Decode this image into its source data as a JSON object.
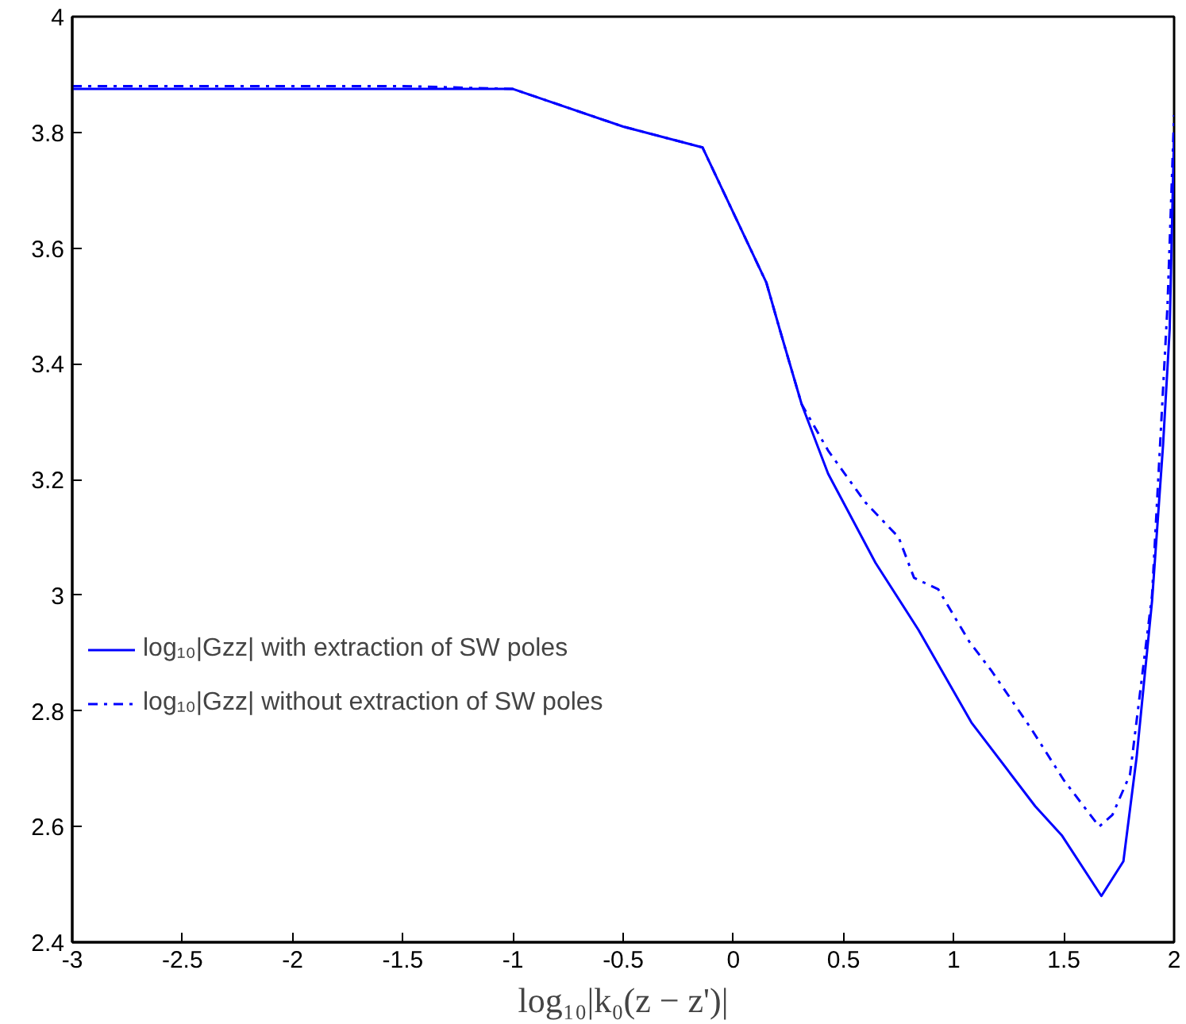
{
  "chart_data": {
    "type": "line",
    "xlabel": "log₁₀|k₀(z − z')|",
    "xlim": [
      -3,
      2
    ],
    "ylim": [
      2.4,
      4
    ],
    "xticks": [
      -3,
      -2.5,
      -2,
      -1.5,
      -1,
      -0.5,
      0,
      0.5,
      1,
      1.5,
      2
    ],
    "yticks": [
      2.4,
      2.6,
      2.8,
      3,
      3.2,
      3.4,
      3.6,
      3.8,
      4
    ],
    "grid": false,
    "legend": "left",
    "marker": "none",
    "series": [
      {
        "name": "log₁₀|Gzz| with extraction of SW poles",
        "color": "#0000ff",
        "line_style": "solid",
        "x": [
          -3,
          -2,
          -1.5,
          -1,
          -0.5,
          -0.14,
          0.15,
          0.21,
          0.31,
          0.43,
          0.645,
          0.84,
          1.08,
          1.37,
          1.49,
          1.67,
          1.77,
          1.83,
          1.9,
          1.95,
          1.98,
          2.0
        ],
        "values": [
          3.875,
          3.875,
          3.875,
          3.875,
          3.81,
          3.774,
          3.54,
          3.46,
          3.33,
          3.21,
          3.056,
          2.94,
          2.78,
          2.635,
          2.585,
          2.48,
          2.54,
          2.72,
          2.99,
          3.26,
          3.46,
          3.8
        ]
      },
      {
        "name": "log₁₀|Gzz| without extraction of SW poles",
        "color": "#0000ff",
        "line_style": "dashdot",
        "x": [
          -3,
          -2,
          -1.5,
          -1,
          -0.5,
          -0.14,
          0.15,
          0.21,
          0.31,
          0.43,
          0.6,
          0.75,
          0.82,
          0.93,
          1.07,
          1.17,
          1.35,
          1.5,
          1.66,
          1.72,
          1.8,
          1.9,
          1.97,
          2.0
        ],
        "values": [
          3.88,
          3.88,
          3.88,
          3.875,
          3.81,
          3.774,
          3.54,
          3.46,
          3.33,
          3.25,
          3.16,
          3.1,
          3.03,
          3.01,
          2.92,
          2.87,
          2.77,
          2.68,
          2.6,
          2.62,
          2.69,
          3.0,
          3.5,
          3.83
        ]
      }
    ]
  }
}
